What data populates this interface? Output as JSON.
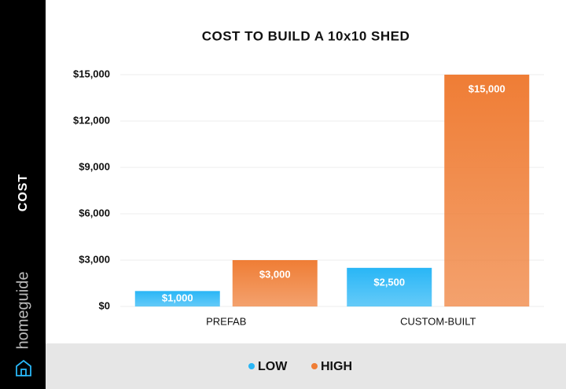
{
  "chart_data": {
    "type": "bar",
    "title": "COST TO BUILD A 10x10 SHED",
    "ylabel": "COST",
    "brand": "homeguide",
    "categories": [
      "PREFAB",
      "CUSTOM-BUILT"
    ],
    "series": [
      {
        "name": "LOW",
        "color": "#29b6f6",
        "values": [
          1000,
          2500
        ],
        "value_labels": [
          "$1,000",
          "$2,500"
        ]
      },
      {
        "name": "HIGH",
        "color": "#ef7d35",
        "values": [
          3000,
          15000
        ],
        "value_labels": [
          "$3,000",
          "$15,000"
        ]
      }
    ],
    "ylim": [
      0,
      15000
    ],
    "yticks": [
      {
        "value": 0,
        "label": "$0"
      },
      {
        "value": 3000,
        "label": "$3,000"
      },
      {
        "value": 6000,
        "label": "$6,000"
      },
      {
        "value": 9000,
        "label": "$9,000"
      },
      {
        "value": 12000,
        "label": "$12,000"
      },
      {
        "value": 15000,
        "label": "$15,000"
      }
    ],
    "grid": true,
    "legend": "bottom"
  }
}
